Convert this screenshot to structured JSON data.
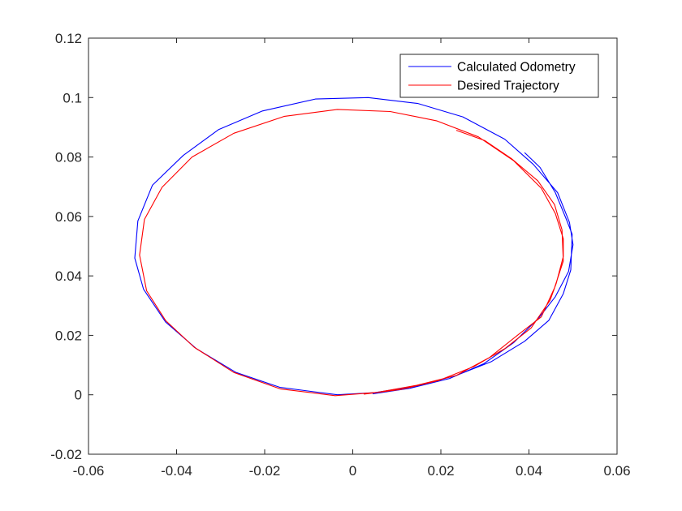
{
  "chart_data": {
    "type": "line",
    "title": "",
    "xlabel": "",
    "ylabel": "",
    "xlim": [
      -0.06,
      0.06
    ],
    "ylim": [
      -0.02,
      0.12
    ],
    "x_ticks": [
      -0.06,
      -0.04,
      -0.02,
      0,
      0.02,
      0.04,
      0.06
    ],
    "x_tick_labels": [
      "-0.06",
      "-0.04",
      "-0.02",
      "0",
      "0.02",
      "0.04",
      "0.06"
    ],
    "y_ticks": [
      -0.02,
      0,
      0.02,
      0.04,
      0.06,
      0.08,
      0.1,
      0.12
    ],
    "y_tick_labels": [
      "-0.02",
      "0",
      "0.02",
      "0.04",
      "0.06",
      "0.08",
      "0.1",
      "0.12"
    ],
    "grid": false,
    "legend_position": "top-right",
    "series": [
      {
        "name": "Calculated Odometry",
        "color": "#0000ff",
        "points": [
          [
            0.039,
            0.0815
          ],
          [
            0.0425,
            0.0765
          ],
          [
            0.046,
            0.068
          ],
          [
            0.0485,
            0.059
          ],
          [
            0.0498,
            0.054
          ],
          [
            0.0495,
            0.042
          ],
          [
            0.0478,
            0.034
          ],
          [
            0.0445,
            0.025
          ],
          [
            0.039,
            0.018
          ],
          [
            0.0315,
            0.0112
          ],
          [
            0.0235,
            0.0065
          ],
          [
            0.014,
            0.0028
          ],
          [
            0.005,
            0.0007
          ],
          [
            -0.0035,
            0.0
          ],
          [
            -0.0165,
            0.0025
          ],
          [
            -0.0265,
            0.0075
          ],
          [
            -0.0355,
            0.0155
          ],
          [
            -0.0425,
            0.0245
          ],
          [
            -0.0475,
            0.0355
          ],
          [
            -0.0495,
            0.046
          ],
          [
            -0.0488,
            0.0585
          ],
          [
            -0.0455,
            0.0705
          ],
          [
            -0.0385,
            0.0805
          ],
          [
            -0.0305,
            0.0892
          ],
          [
            -0.0205,
            0.0955
          ],
          [
            -0.0085,
            0.0995
          ],
          [
            0.0035,
            0.1
          ],
          [
            0.0148,
            0.098
          ],
          [
            0.025,
            0.0935
          ],
          [
            0.0345,
            0.086
          ],
          [
            0.041,
            0.0775
          ],
          [
            0.0465,
            0.068
          ],
          [
            0.0492,
            0.058
          ],
          [
            0.05,
            0.0505
          ],
          [
            0.049,
            0.0415
          ],
          [
            0.046,
            0.033
          ],
          [
            0.0422,
            0.0258
          ],
          [
            0.0365,
            0.0175
          ],
          [
            0.0298,
            0.0105
          ],
          [
            0.022,
            0.0055
          ],
          [
            0.013,
            0.0022
          ],
          [
            0.0045,
            0.0003
          ]
        ]
      },
      {
        "name": "Desired Trajectory",
        "color": "#ff0000",
        "points": [
          [
            0.0235,
            0.089
          ],
          [
            0.03,
            0.0855
          ],
          [
            0.036,
            0.0795
          ],
          [
            0.042,
            0.072
          ],
          [
            0.0458,
            0.064
          ],
          [
            0.0475,
            0.0555
          ],
          [
            0.0478,
            0.045
          ],
          [
            0.0458,
            0.036
          ],
          [
            0.0428,
            0.0262
          ],
          [
            0.0378,
            0.0205
          ],
          [
            0.031,
            0.0125
          ],
          [
            0.0235,
            0.0065
          ],
          [
            0.0145,
            0.0032
          ],
          [
            0.0055,
            0.0008
          ],
          [
            -0.004,
            -0.0003
          ],
          [
            -0.0165,
            0.002
          ],
          [
            -0.027,
            0.0075
          ],
          [
            -0.036,
            0.016
          ],
          [
            -0.0425,
            0.025
          ],
          [
            -0.0468,
            0.035
          ],
          [
            -0.0484,
            0.047
          ],
          [
            -0.0473,
            0.059
          ],
          [
            -0.0433,
            0.0698
          ],
          [
            -0.0365,
            0.08
          ],
          [
            -0.027,
            0.088
          ],
          [
            -0.0155,
            0.0937
          ],
          [
            -0.0035,
            0.096
          ],
          [
            0.0085,
            0.0953
          ],
          [
            0.019,
            0.0922
          ],
          [
            0.0285,
            0.0868
          ],
          [
            0.0365,
            0.0788
          ],
          [
            0.0428,
            0.0695
          ],
          [
            0.046,
            0.061
          ],
          [
            0.0478,
            0.0525
          ],
          [
            0.0478,
            0.0465
          ],
          [
            0.0462,
            0.0375
          ],
          [
            0.0448,
            0.0318
          ],
          [
            0.0405,
            0.0225
          ],
          [
            0.0345,
            0.0155
          ],
          [
            0.0275,
            0.0095
          ],
          [
            0.0195,
            0.0048
          ],
          [
            0.011,
            0.0018
          ],
          [
            0.0025,
            0.0002
          ]
        ]
      }
    ]
  },
  "colors": {
    "axes": "#262626",
    "background": "#ffffff"
  }
}
